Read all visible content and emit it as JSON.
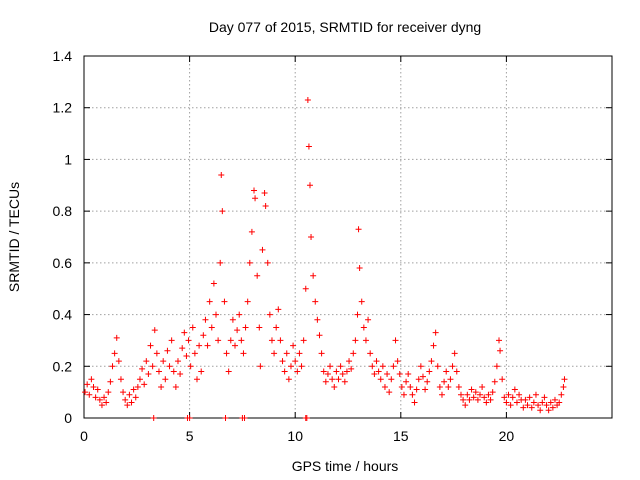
{
  "chart_data": {
    "type": "scatter",
    "title": "Day 077 of 2015, SRMTID for receiver dyng",
    "xlabel": "GPS time / hours",
    "ylabel": "SRMTID / TECUs",
    "xlim": [
      0,
      25
    ],
    "ylim": [
      0,
      1.4
    ],
    "grid": true,
    "marker": "plus",
    "color": "#ff0000",
    "xticks": [
      0,
      5,
      10,
      15,
      20
    ],
    "xtick_labels": [
      "0",
      "5",
      "10",
      "15",
      "20"
    ],
    "yticks": [
      0,
      0.2,
      0.4,
      0.6,
      0.8,
      1.0,
      1.2,
      1.4
    ],
    "ytick_labels": [
      "0",
      "0.2",
      "0.4",
      "0.6",
      "0.8",
      "1",
      "1.2",
      "1.4"
    ],
    "series": [
      {
        "name": "SRMTID",
        "points": [
          [
            0.05,
            0.1
          ],
          [
            0.15,
            0.13
          ],
          [
            0.25,
            0.09
          ],
          [
            0.35,
            0.15
          ],
          [
            0.45,
            0.12
          ],
          [
            0.55,
            0.08
          ],
          [
            0.65,
            0.11
          ],
          [
            0.75,
            0.07
          ],
          [
            0.85,
            0.05
          ],
          [
            0.95,
            0.08
          ],
          [
            1.05,
            0.06
          ],
          [
            1.15,
            0.1
          ],
          [
            1.25,
            0.14
          ],
          [
            1.35,
            0.2
          ],
          [
            1.45,
            0.25
          ],
          [
            1.55,
            0.31
          ],
          [
            1.65,
            0.22
          ],
          [
            1.75,
            0.15
          ],
          [
            1.85,
            0.1
          ],
          [
            1.95,
            0.07
          ],
          [
            2.05,
            0.05
          ],
          [
            2.15,
            0.09
          ],
          [
            2.25,
            0.06
          ],
          [
            2.35,
            0.11
          ],
          [
            2.45,
            0.08
          ],
          [
            2.55,
            0.12
          ],
          [
            2.65,
            0.15
          ],
          [
            2.75,
            0.19
          ],
          [
            2.85,
            0.13
          ],
          [
            2.95,
            0.22
          ],
          [
            3.05,
            0.17
          ],
          [
            3.15,
            0.28
          ],
          [
            3.25,
            0.2
          ],
          [
            3.35,
            0.34
          ],
          [
            3.45,
            0.25
          ],
          [
            3.55,
            0.18
          ],
          [
            3.65,
            0.12
          ],
          [
            3.75,
            0.22
          ],
          [
            3.85,
            0.15
          ],
          [
            3.95,
            0.26
          ],
          [
            4.05,
            0.2
          ],
          [
            4.15,
            0.3
          ],
          [
            4.25,
            0.18
          ],
          [
            4.35,
            0.12
          ],
          [
            4.45,
            0.22
          ],
          [
            4.55,
            0.17
          ],
          [
            4.65,
            0.27
          ],
          [
            4.75,
            0.33
          ],
          [
            4.85,
            0.24
          ],
          [
            4.95,
            0.3
          ],
          [
            5.05,
            0.2
          ],
          [
            5.15,
            0.35
          ],
          [
            5.25,
            0.25
          ],
          [
            5.35,
            0.15
          ],
          [
            5.45,
            0.28
          ],
          [
            5.55,
            0.18
          ],
          [
            5.65,
            0.32
          ],
          [
            5.75,
            0.38
          ],
          [
            5.85,
            0.28
          ],
          [
            5.95,
            0.45
          ],
          [
            6.05,
            0.35
          ],
          [
            6.15,
            0.52
          ],
          [
            6.25,
            0.4
          ],
          [
            6.35,
            0.3
          ],
          [
            6.45,
            0.6
          ],
          [
            6.5,
            0.94
          ],
          [
            6.55,
            0.8
          ],
          [
            6.65,
            0.45
          ],
          [
            6.75,
            0.25
          ],
          [
            6.85,
            0.18
          ],
          [
            6.95,
            0.3
          ],
          [
            7.05,
            0.38
          ],
          [
            7.15,
            0.28
          ],
          [
            7.25,
            0.34
          ],
          [
            7.35,
            0.4
          ],
          [
            7.45,
            0.3
          ],
          [
            7.55,
            0.25
          ],
          [
            7.65,
            0.35
          ],
          [
            7.75,
            0.45
          ],
          [
            7.85,
            0.6
          ],
          [
            7.95,
            0.72
          ],
          [
            8.05,
            0.88
          ],
          [
            8.1,
            0.85
          ],
          [
            8.2,
            0.55
          ],
          [
            8.3,
            0.35
          ],
          [
            8.35,
            0.2
          ],
          [
            8.45,
            0.65
          ],
          [
            8.55,
            0.87
          ],
          [
            8.6,
            0.82
          ],
          [
            8.7,
            0.6
          ],
          [
            8.8,
            0.4
          ],
          [
            8.9,
            0.3
          ],
          [
            9.0,
            0.25
          ],
          [
            9.1,
            0.35
          ],
          [
            9.2,
            0.42
          ],
          [
            9.3,
            0.3
          ],
          [
            9.4,
            0.22
          ],
          [
            9.5,
            0.18
          ],
          [
            9.6,
            0.25
          ],
          [
            9.7,
            0.15
          ],
          [
            9.8,
            0.2
          ],
          [
            9.9,
            0.28
          ],
          [
            10.0,
            0.22
          ],
          [
            10.1,
            0.18
          ],
          [
            10.2,
            0.25
          ],
          [
            10.3,
            0.2
          ],
          [
            10.4,
            0.3
          ],
          [
            10.5,
            0.5
          ],
          [
            10.6,
            1.23
          ],
          [
            10.65,
            1.05
          ],
          [
            10.7,
            0.9
          ],
          [
            10.75,
            0.7
          ],
          [
            10.85,
            0.55
          ],
          [
            10.95,
            0.45
          ],
          [
            11.05,
            0.38
          ],
          [
            11.15,
            0.32
          ],
          [
            11.25,
            0.25
          ],
          [
            11.35,
            0.18
          ],
          [
            11.45,
            0.14
          ],
          [
            11.55,
            0.17
          ],
          [
            11.65,
            0.2
          ],
          [
            11.75,
            0.15
          ],
          [
            11.85,
            0.12
          ],
          [
            11.95,
            0.18
          ],
          [
            12.05,
            0.15
          ],
          [
            12.15,
            0.2
          ],
          [
            12.25,
            0.17
          ],
          [
            12.35,
            0.14
          ],
          [
            12.45,
            0.18
          ],
          [
            12.55,
            0.22
          ],
          [
            12.65,
            0.19
          ],
          [
            12.75,
            0.25
          ],
          [
            12.85,
            0.3
          ],
          [
            12.95,
            0.4
          ],
          [
            13.0,
            0.73
          ],
          [
            13.05,
            0.58
          ],
          [
            13.15,
            0.45
          ],
          [
            13.25,
            0.35
          ],
          [
            13.35,
            0.3
          ],
          [
            13.45,
            0.38
          ],
          [
            13.55,
            0.25
          ],
          [
            13.65,
            0.2
          ],
          [
            13.75,
            0.17
          ],
          [
            13.85,
            0.22
          ],
          [
            13.95,
            0.18
          ],
          [
            14.05,
            0.15
          ],
          [
            14.15,
            0.2
          ],
          [
            14.25,
            0.12
          ],
          [
            14.35,
            0.17
          ],
          [
            14.45,
            0.1
          ],
          [
            14.55,
            0.15
          ],
          [
            14.65,
            0.2
          ],
          [
            14.75,
            0.3
          ],
          [
            14.85,
            0.22
          ],
          [
            14.95,
            0.17
          ],
          [
            15.05,
            0.12
          ],
          [
            15.15,
            0.09
          ],
          [
            15.25,
            0.14
          ],
          [
            15.35,
            0.17
          ],
          [
            15.45,
            0.12
          ],
          [
            15.55,
            0.09
          ],
          [
            15.65,
            0.06
          ],
          [
            15.75,
            0.11
          ],
          [
            15.85,
            0.15
          ],
          [
            15.95,
            0.2
          ],
          [
            16.05,
            0.16
          ],
          [
            16.15,
            0.11
          ],
          [
            16.25,
            0.14
          ],
          [
            16.35,
            0.18
          ],
          [
            16.45,
            0.22
          ],
          [
            16.55,
            0.28
          ],
          [
            16.65,
            0.33
          ],
          [
            16.75,
            0.2
          ],
          [
            16.85,
            0.12
          ],
          [
            16.95,
            0.09
          ],
          [
            17.05,
            0.14
          ],
          [
            17.15,
            0.18
          ],
          [
            17.25,
            0.12
          ],
          [
            17.35,
            0.15
          ],
          [
            17.45,
            0.2
          ],
          [
            17.55,
            0.25
          ],
          [
            17.65,
            0.18
          ],
          [
            17.75,
            0.12
          ],
          [
            17.85,
            0.09
          ],
          [
            17.95,
            0.07
          ],
          [
            18.05,
            0.05
          ],
          [
            18.15,
            0.09
          ],
          [
            18.25,
            0.07
          ],
          [
            18.35,
            0.11
          ],
          [
            18.45,
            0.08
          ],
          [
            18.55,
            0.1
          ],
          [
            18.65,
            0.07
          ],
          [
            18.75,
            0.09
          ],
          [
            18.85,
            0.12
          ],
          [
            18.95,
            0.08
          ],
          [
            19.05,
            0.06
          ],
          [
            19.15,
            0.09
          ],
          [
            19.25,
            0.07
          ],
          [
            19.35,
            0.1
          ],
          [
            19.45,
            0.14
          ],
          [
            19.55,
            0.2
          ],
          [
            19.65,
            0.3
          ],
          [
            19.7,
            0.26
          ],
          [
            19.8,
            0.15
          ],
          [
            19.9,
            0.08
          ],
          [
            20.0,
            0.06
          ],
          [
            20.1,
            0.09
          ],
          [
            20.2,
            0.05
          ],
          [
            20.3,
            0.08
          ],
          [
            20.4,
            0.11
          ],
          [
            20.5,
            0.06
          ],
          [
            20.6,
            0.09
          ],
          [
            20.7,
            0.07
          ],
          [
            20.8,
            0.04
          ],
          [
            20.9,
            0.07
          ],
          [
            21.0,
            0.05
          ],
          [
            21.1,
            0.08
          ],
          [
            21.2,
            0.04
          ],
          [
            21.3,
            0.06
          ],
          [
            21.4,
            0.09
          ],
          [
            21.5,
            0.05
          ],
          [
            21.6,
            0.03
          ],
          [
            21.7,
            0.06
          ],
          [
            21.8,
            0.08
          ],
          [
            21.9,
            0.05
          ],
          [
            22.0,
            0.03
          ],
          [
            22.1,
            0.06
          ],
          [
            22.2,
            0.04
          ],
          [
            22.3,
            0.07
          ],
          [
            22.4,
            0.05
          ],
          [
            22.5,
            0.06
          ],
          [
            22.6,
            0.09
          ],
          [
            22.7,
            0.12
          ],
          [
            22.75,
            0.15
          ],
          [
            3.3,
            0.0
          ],
          [
            4.9,
            0.0
          ],
          [
            5.0,
            0.0
          ],
          [
            6.7,
            0.0
          ],
          [
            7.5,
            0.0
          ],
          [
            7.6,
            0.0
          ],
          [
            10.5,
            0.0
          ],
          [
            10.55,
            0.0
          ]
        ]
      }
    ]
  }
}
